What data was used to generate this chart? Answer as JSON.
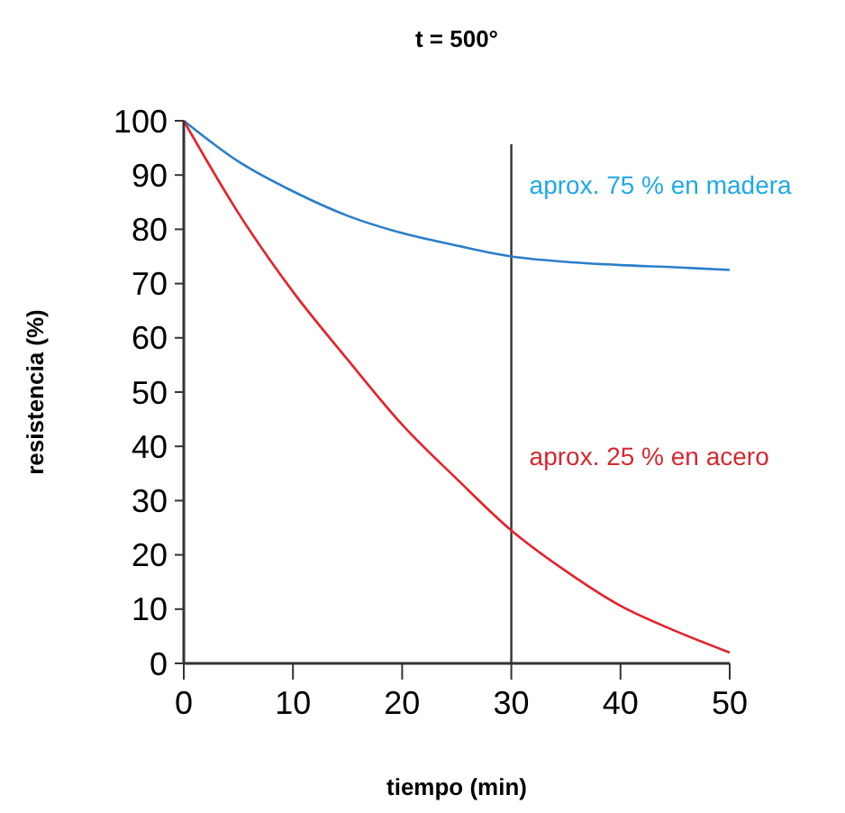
{
  "chart_data": {
    "type": "line",
    "title": "t = 500°",
    "xlabel": "tiempo (min)",
    "ylabel": "resistencia (%)",
    "x": [
      0,
      5,
      10,
      15,
      20,
      25,
      30,
      35,
      40,
      45,
      50
    ],
    "series": [
      {
        "color": "#2a7fc9",
        "values": [
          100,
          92.5,
          87,
          82.5,
          79.3,
          77,
          75,
          74,
          73.4,
          73,
          72.5
        ]
      },
      {
        "color": "#e8212a",
        "values": [
          100,
          83,
          68.5,
          56,
          44,
          34,
          24.5,
          17,
          10.6,
          6,
          2
        ]
      }
    ],
    "xlim": [
      0,
      50
    ],
    "xticks": [
      0,
      10,
      20,
      30,
      40,
      50
    ],
    "ylim": [
      0,
      100
    ],
    "yticks": [
      0,
      10,
      20,
      30,
      40,
      50,
      60,
      70,
      80,
      90,
      100
    ],
    "grid": false,
    "marker": "none",
    "line_style": "solid",
    "ref_lines": [
      {
        "axis": "x",
        "value": 30,
        "color": "#333333"
      }
    ],
    "annotations": [
      {
        "text": "aprox. 75 % en madera",
        "x": 30,
        "y": 75
      },
      {
        "text": "aprox. 25 % en acero",
        "x": 30,
        "y": 25
      }
    ]
  }
}
